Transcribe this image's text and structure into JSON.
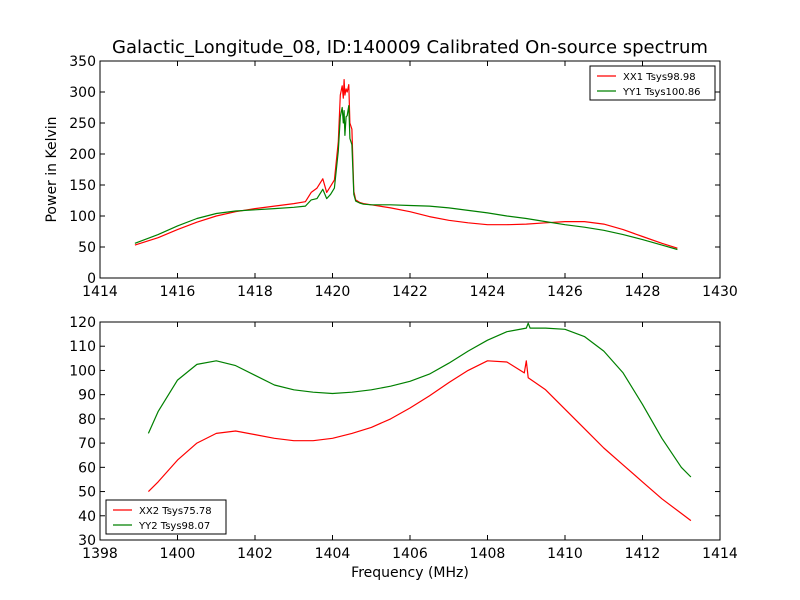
{
  "figure": {
    "title": "Galactic_Longitude_08, ID:140009 Calibrated On-source spectrum"
  },
  "chart_data": [
    {
      "type": "line",
      "ylabel": "Power in Kelvin",
      "xlabel": "",
      "xlim": [
        1414,
        1430
      ],
      "ylim": [
        0,
        350
      ],
      "xticks": [
        1414,
        1416,
        1418,
        1420,
        1422,
        1424,
        1426,
        1428,
        1430
      ],
      "yticks": [
        0,
        50,
        100,
        150,
        200,
        250,
        300,
        350
      ],
      "grid": false,
      "legend_position": "top-right",
      "series": [
        {
          "name": "XX1 Tsys98.98",
          "color": "#ff0000",
          "x": [
            1414.9,
            1415.5,
            1416.0,
            1416.5,
            1417.0,
            1417.5,
            1418.0,
            1418.5,
            1419.0,
            1419.3,
            1419.45,
            1419.6,
            1419.75,
            1419.85,
            1419.95,
            1420.05,
            1420.15,
            1420.2,
            1420.25,
            1420.28,
            1420.3,
            1420.32,
            1420.35,
            1420.38,
            1420.42,
            1420.45,
            1420.5,
            1420.55,
            1420.6,
            1420.7,
            1420.8,
            1421.0,
            1421.5,
            1422.0,
            1422.5,
            1423.0,
            1423.5,
            1424.0,
            1424.5,
            1425.0,
            1425.5,
            1426.0,
            1426.5,
            1427.0,
            1427.5,
            1428.0,
            1428.5,
            1428.9
          ],
          "values": [
            53,
            65,
            78,
            90,
            100,
            107,
            112,
            116,
            120,
            123,
            138,
            145,
            160,
            138,
            148,
            158,
            220,
            295,
            310,
            290,
            320,
            295,
            305,
            300,
            312,
            250,
            240,
            140,
            126,
            122,
            120,
            118,
            113,
            107,
            99,
            93,
            89,
            86,
            86,
            87,
            89,
            91,
            91,
            87,
            78,
            67,
            56,
            48
          ]
        },
        {
          "name": "YY1 Tsys100.86",
          "color": "#008000",
          "x": [
            1414.9,
            1415.5,
            1416.0,
            1416.5,
            1417.0,
            1417.5,
            1418.0,
            1418.5,
            1419.0,
            1419.3,
            1419.45,
            1419.6,
            1419.75,
            1419.85,
            1419.95,
            1420.05,
            1420.15,
            1420.2,
            1420.25,
            1420.28,
            1420.3,
            1420.32,
            1420.35,
            1420.38,
            1420.42,
            1420.45,
            1420.5,
            1420.55,
            1420.6,
            1420.7,
            1420.8,
            1421.0,
            1421.5,
            1422.0,
            1422.5,
            1423.0,
            1423.5,
            1424.0,
            1424.5,
            1425.0,
            1425.5,
            1426.0,
            1426.5,
            1427.0,
            1427.5,
            1428.0,
            1428.5,
            1428.9
          ],
          "values": [
            56,
            70,
            84,
            96,
            104,
            108,
            110,
            112,
            114,
            116,
            126,
            128,
            143,
            128,
            135,
            145,
            205,
            260,
            275,
            250,
            270,
            230,
            260,
            262,
            278,
            225,
            215,
            135,
            124,
            121,
            119,
            118,
            118,
            117,
            116,
            113,
            109,
            105,
            100,
            96,
            91,
            86,
            82,
            77,
            70,
            62,
            53,
            46
          ]
        }
      ]
    },
    {
      "type": "line",
      "ylabel": "",
      "xlabel": "Frequency (MHz)",
      "xlim": [
        1398,
        1414
      ],
      "ylim": [
        30,
        120
      ],
      "xticks": [
        1398,
        1400,
        1402,
        1404,
        1406,
        1408,
        1410,
        1412,
        1414
      ],
      "yticks": [
        30,
        40,
        50,
        60,
        70,
        80,
        90,
        100,
        110,
        120
      ],
      "grid": false,
      "legend_position": "bottom-left",
      "series": [
        {
          "name": "XX2 Tsys75.78",
          "color": "#ff0000",
          "x": [
            1399.25,
            1399.5,
            1400.0,
            1400.5,
            1401.0,
            1401.5,
            1402.0,
            1402.5,
            1403.0,
            1403.5,
            1404.0,
            1404.5,
            1405.0,
            1405.5,
            1406.0,
            1406.5,
            1407.0,
            1407.5,
            1408.0,
            1408.5,
            1408.95,
            1409.0,
            1409.05,
            1409.5,
            1410.0,
            1410.5,
            1411.0,
            1411.5,
            1412.0,
            1412.5,
            1413.0,
            1413.25
          ],
          "values": [
            50,
            54,
            63,
            70,
            74,
            75,
            73.5,
            72,
            71,
            71,
            72,
            74,
            76.5,
            80,
            84.5,
            89.5,
            95,
            100,
            104,
            103.5,
            99,
            104,
            97,
            92,
            84,
            76,
            68,
            61,
            54,
            47,
            41,
            38
          ]
        },
        {
          "name": "YY2 Tsys98.07",
          "color": "#008000",
          "x": [
            1399.25,
            1399.5,
            1400.0,
            1400.5,
            1401.0,
            1401.5,
            1402.0,
            1402.5,
            1403.0,
            1403.5,
            1404.0,
            1404.5,
            1405.0,
            1405.5,
            1406.0,
            1406.5,
            1407.0,
            1407.5,
            1408.0,
            1408.5,
            1409.0,
            1409.05,
            1409.1,
            1409.5,
            1410.0,
            1410.5,
            1411.0,
            1411.5,
            1412.0,
            1412.5,
            1413.0,
            1413.25
          ],
          "values": [
            74,
            83,
            96,
            102.5,
            104,
            102,
            98,
            94,
            92,
            91,
            90.5,
            91,
            92,
            93.5,
            95.5,
            98.5,
            103,
            108,
            112.5,
            116,
            117.5,
            119.5,
            117.5,
            117.5,
            117,
            114,
            108,
            99,
            86,
            72,
            60,
            56
          ]
        }
      ]
    }
  ]
}
